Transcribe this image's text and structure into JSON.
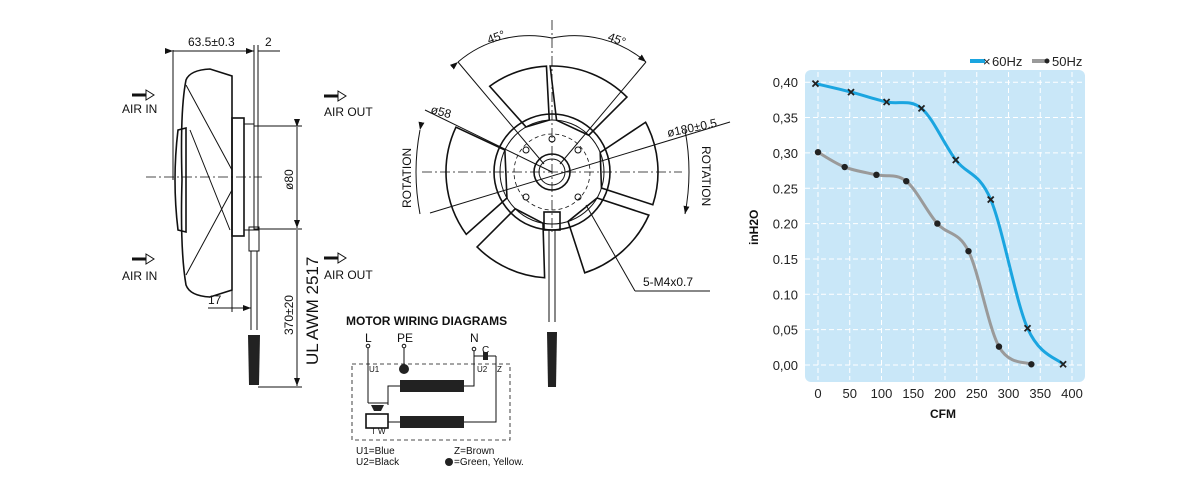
{
  "side_view": {
    "dim_depth": "63.5±0.3",
    "dim_flange": "2",
    "dim_diameter": "ø80",
    "dim_offset": "17",
    "dim_cable": "370±20",
    "cable_spec": "UL AWM 2517",
    "air_in": "AIR IN",
    "air_out": "AIR OUT"
  },
  "front_view": {
    "angle_left": "45°",
    "angle_right": "45°",
    "dim_hub": "ø58",
    "dim_outer": "ø180±0.5",
    "rotation": "ROTATION",
    "screws": "5-M4x0.7"
  },
  "wiring": {
    "title": "MOTOR WIRING DIAGRAMS",
    "terminal_l": "L",
    "terminal_pe": "PE",
    "terminal_n": "N",
    "capacitor": "C",
    "u1": "U1",
    "u2": "U2",
    "z": "Z",
    "tw": "T W",
    "legend_u1": "U1=Blue",
    "legend_u2": "U2=Black",
    "legend_z": "Z=Brown",
    "legend_pe": "=Green, Yellow."
  },
  "chart_data": {
    "type": "line",
    "xlabel": "CFM",
    "ylabel": "inH2O",
    "xlim": [
      0,
      400
    ],
    "ylim": [
      0,
      0.4
    ],
    "x_ticks": [
      "0",
      "50",
      "100",
      "150",
      "200",
      "250",
      "300",
      "350",
      "400"
    ],
    "y_ticks": [
      "0,00",
      "0,05",
      "0.10",
      "0.15",
      "0.20",
      "0.25",
      "0,30",
      "0,35",
      "0,40"
    ],
    "grid": true,
    "legend_position": "top-right",
    "background": "#c9e7f8",
    "series": [
      {
        "name": "60Hz",
        "color": "#1aa5e0",
        "marker": "x",
        "x": [
          -4,
          52,
          108,
          163,
          217,
          272,
          330,
          386
        ],
        "y": [
          0.398,
          0.386,
          0.372,
          0.363,
          0.29,
          0.234,
          0.052,
          0.001
        ]
      },
      {
        "name": "50Hz",
        "color": "#9a9a9a",
        "marker": "dot",
        "x": [
          0,
          42,
          92,
          139,
          188,
          237,
          285,
          336
        ],
        "y": [
          0.301,
          0.28,
          0.269,
          0.26,
          0.2,
          0.161,
          0.026,
          0.001
        ]
      }
    ]
  }
}
